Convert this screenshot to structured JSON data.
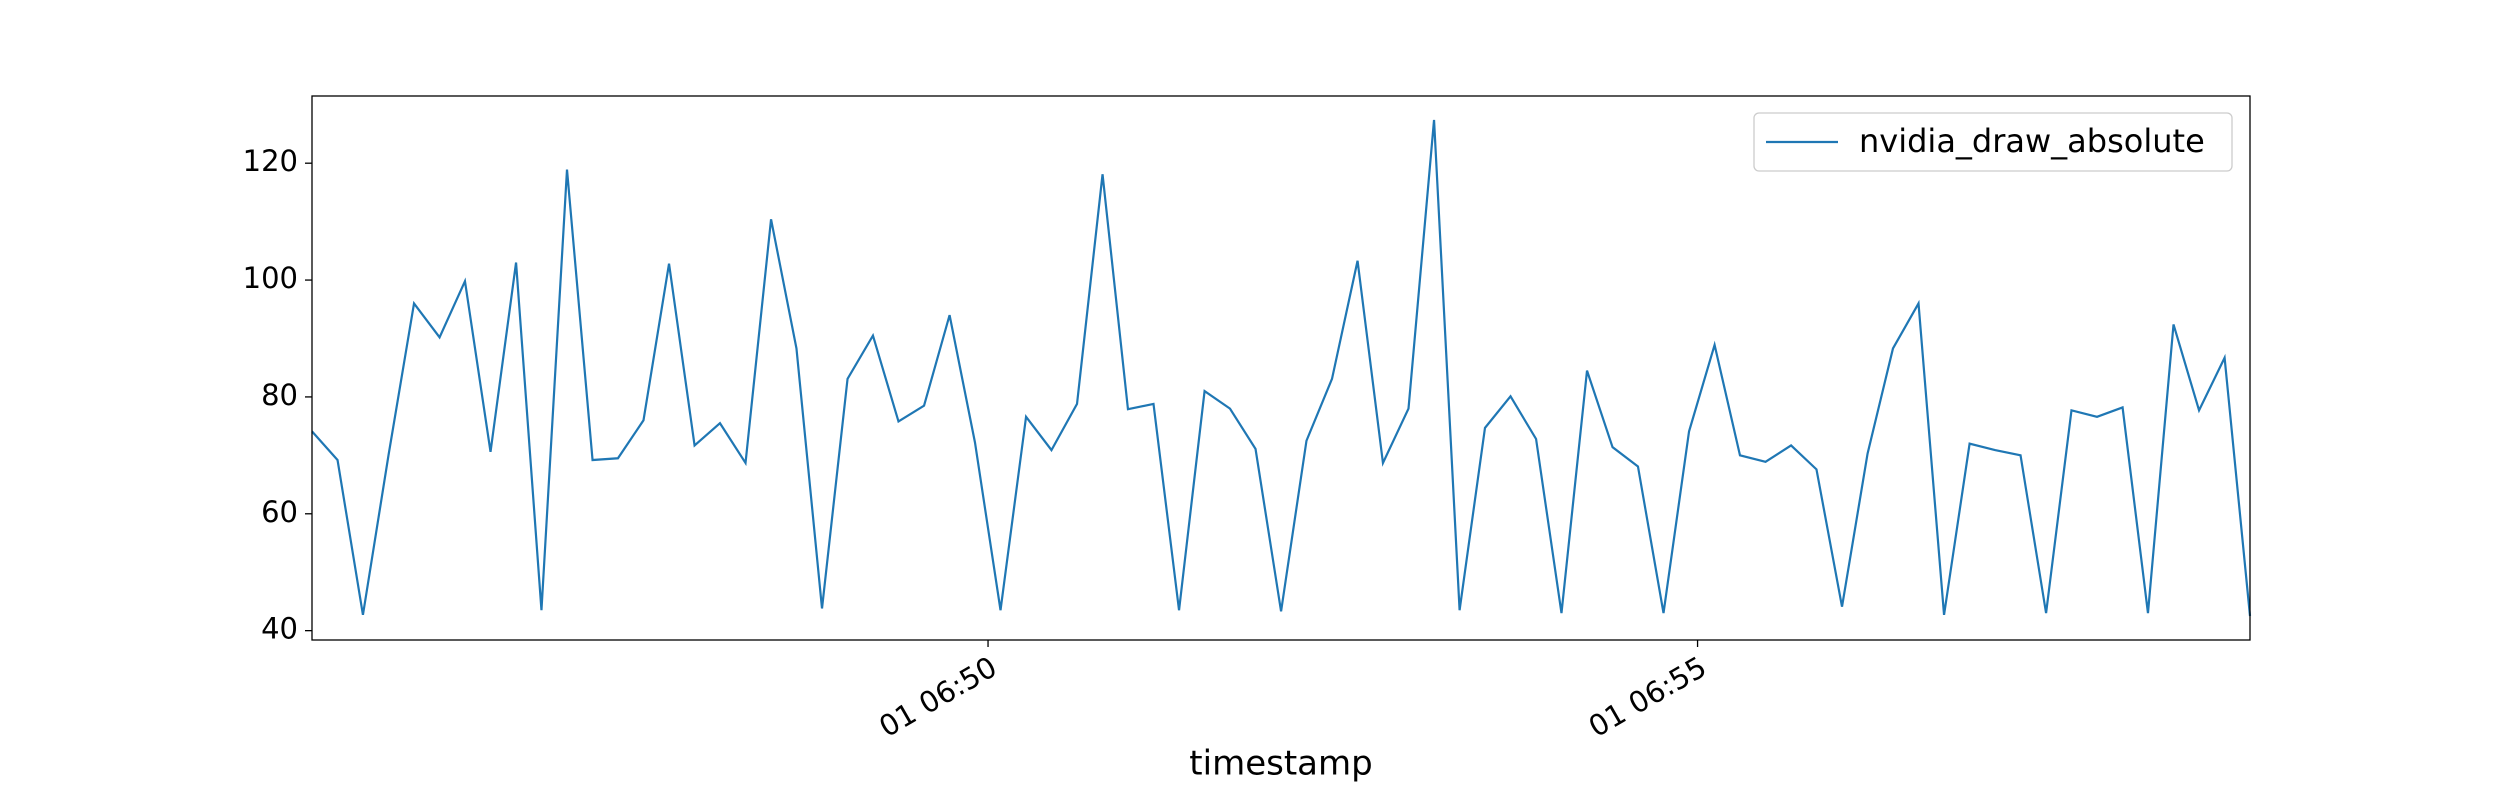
{
  "chart_data": {
    "type": "line",
    "xlabel": "timestamp",
    "x": [
      45.236,
      45.416,
      45.595,
      45.775,
      45.955,
      46.135,
      46.314,
      46.494,
      46.674,
      46.853,
      47.033,
      47.213,
      47.392,
      47.572,
      47.752,
      47.932,
      48.111,
      48.291,
      48.471,
      48.65,
      48.83,
      49.01,
      49.189,
      49.369,
      49.549,
      49.729,
      49.908,
      50.088,
      50.268,
      50.447,
      50.627,
      50.807,
      50.986,
      51.166,
      51.346,
      51.526,
      51.705,
      51.885,
      52.065,
      52.244,
      52.424,
      52.604,
      52.783,
      52.963,
      53.143,
      53.323,
      53.502,
      53.682,
      53.862,
      54.041,
      54.221,
      54.401,
      54.58,
      54.76,
      54.94,
      55.12,
      55.299,
      55.479,
      55.659,
      55.838,
      56.018,
      56.198,
      56.377,
      56.557,
      56.737,
      56.917,
      57.096,
      57.276,
      57.456,
      57.635,
      57.815,
      57.995,
      58.174,
      58.354,
      58.534,
      58.714,
      58.893
    ],
    "series": [
      {
        "name": "nvidia_draw_absolute",
        "color": "#1f77b4",
        "values": [
          74.1,
          69.2,
          42.7,
          70,
          96,
          90.2,
          99.8,
          70.6,
          103,
          43.5,
          118.9,
          69.2,
          69.5,
          76,
          102.8,
          71.7,
          75.5,
          68.7,
          110.4,
          88.3,
          43.8,
          83.1,
          90.5,
          75.8,
          78.5,
          94,
          72.2,
          43.5,
          76.6,
          70.9,
          78.8,
          118.1,
          77.9,
          78.8,
          43.5,
          81,
          78,
          71.1,
          43.3,
          72.5,
          83.1,
          103.3,
          68.7,
          78,
          127.4,
          43.5,
          74.7,
          80.1,
          72.8,
          43,
          84.5,
          71.4,
          68.1,
          43,
          74.1,
          88.9,
          70,
          68.9,
          71.7,
          67.6,
          44.1,
          70.3,
          88.3,
          96,
          42.7,
          72,
          70.9,
          70,
          43,
          77.7,
          76.6,
          78.2,
          43,
          92.4,
          77.7,
          86.7,
          42.5
        ]
      }
    ],
    "xlim": [
      45.236,
      58.893
    ],
    "xticks": [
      {
        "value": 50,
        "label": "01 06:50"
      },
      {
        "value": 55,
        "label": "01 06:55"
      }
    ],
    "ylim": [
      38.4,
      131.5
    ],
    "yticks": [
      40,
      60,
      80,
      100,
      120
    ],
    "legend": "upper right"
  }
}
